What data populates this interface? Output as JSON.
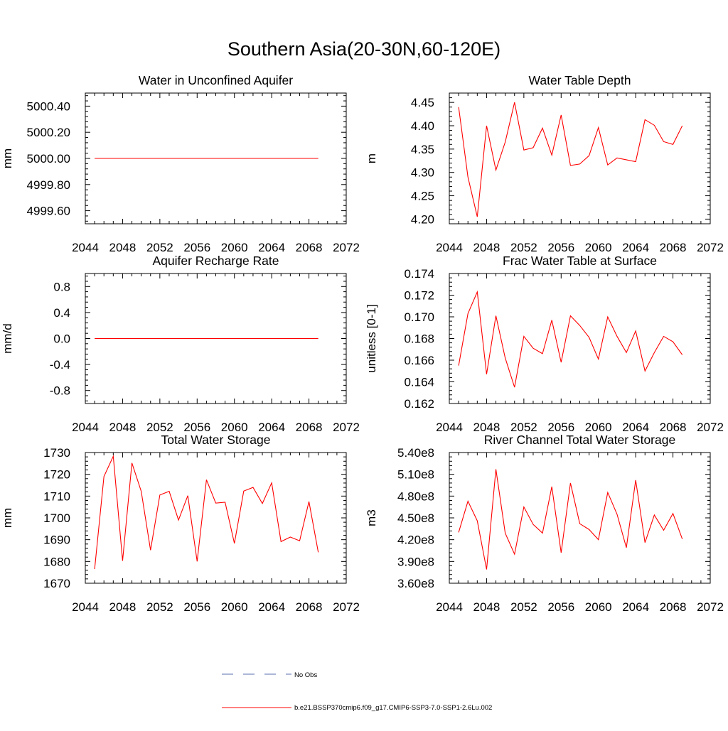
{
  "figure": {
    "title": "Southern Asia(20-30N,60-120E)"
  },
  "legend": {
    "items": [
      {
        "label": "No Obs",
        "color": "#5a6fb0",
        "style": "dashed"
      },
      {
        "label": "b.e21.BSSP370cmip6.f09_g17.CMIP6-SSP3-7.0-SSP1-2.6Lu.002",
        "color": "#ff0000",
        "style": "solid"
      }
    ]
  },
  "chart_data": [
    {
      "type": "line",
      "title": "Water in Unconfined Aquifer",
      "ylabel": "mm",
      "xlim": [
        2044,
        2072
      ],
      "ylim": [
        4999.5,
        5000.5
      ],
      "xticks": [
        2044,
        2048,
        2052,
        2056,
        2060,
        2064,
        2068,
        2072
      ],
      "xtick_labels": [
        "2044",
        "2048",
        "2052",
        "2056",
        "2060",
        "2064",
        "2068",
        "2072"
      ],
      "yticks": [
        4999.6,
        4999.8,
        5000.0,
        5000.2,
        5000.4
      ],
      "ytick_labels": [
        "4999.60",
        "4999.80",
        "5000.00",
        "5000.20",
        "5000.40"
      ],
      "x": [
        2045,
        2046,
        2047,
        2048,
        2049,
        2050,
        2051,
        2052,
        2053,
        2054,
        2055,
        2056,
        2057,
        2058,
        2059,
        2060,
        2061,
        2062,
        2063,
        2064,
        2065,
        2066,
        2067,
        2068,
        2069
      ],
      "series": [
        {
          "color": "#ff0000",
          "values": [
            5000,
            5000,
            5000,
            5000,
            5000,
            5000,
            5000,
            5000,
            5000,
            5000,
            5000,
            5000,
            5000,
            5000,
            5000,
            5000,
            5000,
            5000,
            5000,
            5000,
            5000,
            5000,
            5000,
            5000,
            5000
          ]
        }
      ]
    },
    {
      "type": "line",
      "title": "Water Table Depth",
      "ylabel": "m",
      "xlim": [
        2044,
        2072
      ],
      "ylim": [
        4.19,
        4.47
      ],
      "xticks": [
        2044,
        2048,
        2052,
        2056,
        2060,
        2064,
        2068,
        2072
      ],
      "xtick_labels": [
        "2044",
        "2048",
        "2052",
        "2056",
        "2060",
        "2064",
        "2068",
        "2072"
      ],
      "yticks": [
        4.2,
        4.25,
        4.3,
        4.35,
        4.4,
        4.45
      ],
      "ytick_labels": [
        "4.20",
        "4.25",
        "4.30",
        "4.35",
        "4.40",
        "4.45"
      ],
      "x": [
        2045,
        2046,
        2047,
        2048,
        2049,
        2050,
        2051,
        2052,
        2053,
        2054,
        2055,
        2056,
        2057,
        2058,
        2059,
        2060,
        2061,
        2062,
        2063,
        2064,
        2065,
        2066,
        2067,
        2068,
        2069
      ],
      "series": [
        {
          "color": "#ff0000",
          "values": [
            4.44,
            4.29,
            4.205,
            4.4,
            4.305,
            4.365,
            4.45,
            4.348,
            4.353,
            4.395,
            4.337,
            4.423,
            4.315,
            4.318,
            4.336,
            4.396,
            4.316,
            4.331,
            4.327,
            4.323,
            4.413,
            4.401,
            4.366,
            4.36,
            4.4
          ]
        }
      ]
    },
    {
      "type": "line",
      "title": "Aquifer Recharge Rate",
      "ylabel": "mm/d",
      "xlim": [
        2044,
        2072
      ],
      "ylim": [
        -1.0,
        1.0
      ],
      "xticks": [
        2044,
        2048,
        2052,
        2056,
        2060,
        2064,
        2068,
        2072
      ],
      "xtick_labels": [
        "2044",
        "2048",
        "2052",
        "2056",
        "2060",
        "2064",
        "2068",
        "2072"
      ],
      "yticks": [
        -0.8,
        -0.4,
        0.0,
        0.4,
        0.8
      ],
      "ytick_labels": [
        "-0.8",
        "-0.4",
        "0.0",
        "0.4",
        "0.8"
      ],
      "x": [
        2045,
        2046,
        2047,
        2048,
        2049,
        2050,
        2051,
        2052,
        2053,
        2054,
        2055,
        2056,
        2057,
        2058,
        2059,
        2060,
        2061,
        2062,
        2063,
        2064,
        2065,
        2066,
        2067,
        2068,
        2069
      ],
      "series": [
        {
          "color": "#ff0000",
          "values": [
            0,
            0,
            0,
            0,
            0,
            0,
            0,
            0,
            0,
            0,
            0,
            0,
            0,
            0,
            0,
            0,
            0,
            0,
            0,
            0,
            0,
            0,
            0,
            0,
            0
          ]
        }
      ]
    },
    {
      "type": "line",
      "title": "Frac Water Table at Surface",
      "ylabel": "unitless [0-1]",
      "xlim": [
        2044,
        2072
      ],
      "ylim": [
        0.162,
        0.174
      ],
      "xticks": [
        2044,
        2048,
        2052,
        2056,
        2060,
        2064,
        2068,
        2072
      ],
      "xtick_labels": [
        "2044",
        "2048",
        "2052",
        "2056",
        "2060",
        "2064",
        "2068",
        "2072"
      ],
      "yticks": [
        0.162,
        0.164,
        0.166,
        0.168,
        0.17,
        0.172,
        0.174
      ],
      "ytick_labels": [
        "0.162",
        "0.164",
        "0.166",
        "0.168",
        "0.170",
        "0.172",
        "0.174"
      ],
      "x": [
        2045,
        2046,
        2047,
        2048,
        2049,
        2050,
        2051,
        2052,
        2053,
        2054,
        2055,
        2056,
        2057,
        2058,
        2059,
        2060,
        2061,
        2062,
        2063,
        2064,
        2065,
        2066,
        2067,
        2068,
        2069
      ],
      "series": [
        {
          "color": "#ff0000",
          "values": [
            0.1655,
            0.1703,
            0.1723,
            0.1647,
            0.1701,
            0.1662,
            0.1635,
            0.1682,
            0.1671,
            0.1666,
            0.1697,
            0.1658,
            0.1701,
            0.1692,
            0.1681,
            0.1661,
            0.17,
            0.1682,
            0.1667,
            0.1687,
            0.165,
            0.1667,
            0.1682,
            0.1677,
            0.1665
          ]
        }
      ]
    },
    {
      "type": "line",
      "title": "Total Water Storage",
      "ylabel": "mm",
      "xlim": [
        2044,
        2072
      ],
      "ylim": [
        1670,
        1730
      ],
      "xticks": [
        2044,
        2048,
        2052,
        2056,
        2060,
        2064,
        2068,
        2072
      ],
      "xtick_labels": [
        "2044",
        "2048",
        "2052",
        "2056",
        "2060",
        "2064",
        "2068",
        "2072"
      ],
      "yticks": [
        1670,
        1680,
        1690,
        1700,
        1710,
        1720,
        1730
      ],
      "ytick_labels": [
        "1670",
        "1680",
        "1690",
        "1700",
        "1710",
        "1720",
        "1730"
      ],
      "x": [
        2045,
        2046,
        2047,
        2048,
        2049,
        2050,
        2051,
        2052,
        2053,
        2054,
        2055,
        2056,
        2057,
        2058,
        2059,
        2060,
        2061,
        2062,
        2063,
        2064,
        2065,
        2066,
        2067,
        2068,
        2069
      ],
      "series": [
        {
          "color": "#ff0000",
          "values": [
            1676.5,
            1719,
            1728.3,
            1680.3,
            1725.2,
            1712.2,
            1685.2,
            1710.5,
            1712.2,
            1699,
            1710.2,
            1680,
            1717.5,
            1706.8,
            1707.2,
            1688.3,
            1712.3,
            1714,
            1706.6,
            1716.1,
            1689.1,
            1691.2,
            1689.5,
            1707.5,
            1684.2
          ]
        }
      ]
    },
    {
      "type": "line",
      "title": "River Channel Total Water Storage",
      "ylabel": "m3",
      "xlim": [
        2044,
        2072
      ],
      "ylim": [
        360000000.0,
        540000000.0
      ],
      "xticks": [
        2044,
        2048,
        2052,
        2056,
        2060,
        2064,
        2068,
        2072
      ],
      "xtick_labels": [
        "2044",
        "2048",
        "2052",
        "2056",
        "2060",
        "2064",
        "2068",
        "2072"
      ],
      "yticks": [
        360000000.0,
        390000000.0,
        420000000.0,
        450000000.0,
        480000000.0,
        510000000.0,
        540000000.0
      ],
      "ytick_labels": [
        "3.60e8",
        "3.90e8",
        "4.20e8",
        "4.50e8",
        "4.80e8",
        "5.10e8",
        "5.40e8"
      ],
      "x": [
        2045,
        2046,
        2047,
        2048,
        2049,
        2050,
        2051,
        2052,
        2053,
        2054,
        2055,
        2056,
        2057,
        2058,
        2059,
        2060,
        2061,
        2062,
        2063,
        2064,
        2065,
        2066,
        2067,
        2068,
        2069
      ],
      "series": [
        {
          "color": "#ff0000",
          "values": [
            430000000.0,
            473000000.0,
            446000000.0,
            379000000.0,
            517000000.0,
            429000000.0,
            400000000.0,
            465000000.0,
            441000000.0,
            429000000.0,
            493000000.0,
            402000000.0,
            498000000.0,
            442000000.0,
            434000000.0,
            420000000.0,
            485000000.0,
            455000000.0,
            409000000.0,
            502000000.0,
            416000000.0,
            454000000.0,
            433000000.0,
            456000000.0,
            421000000.0
          ]
        }
      ]
    }
  ]
}
